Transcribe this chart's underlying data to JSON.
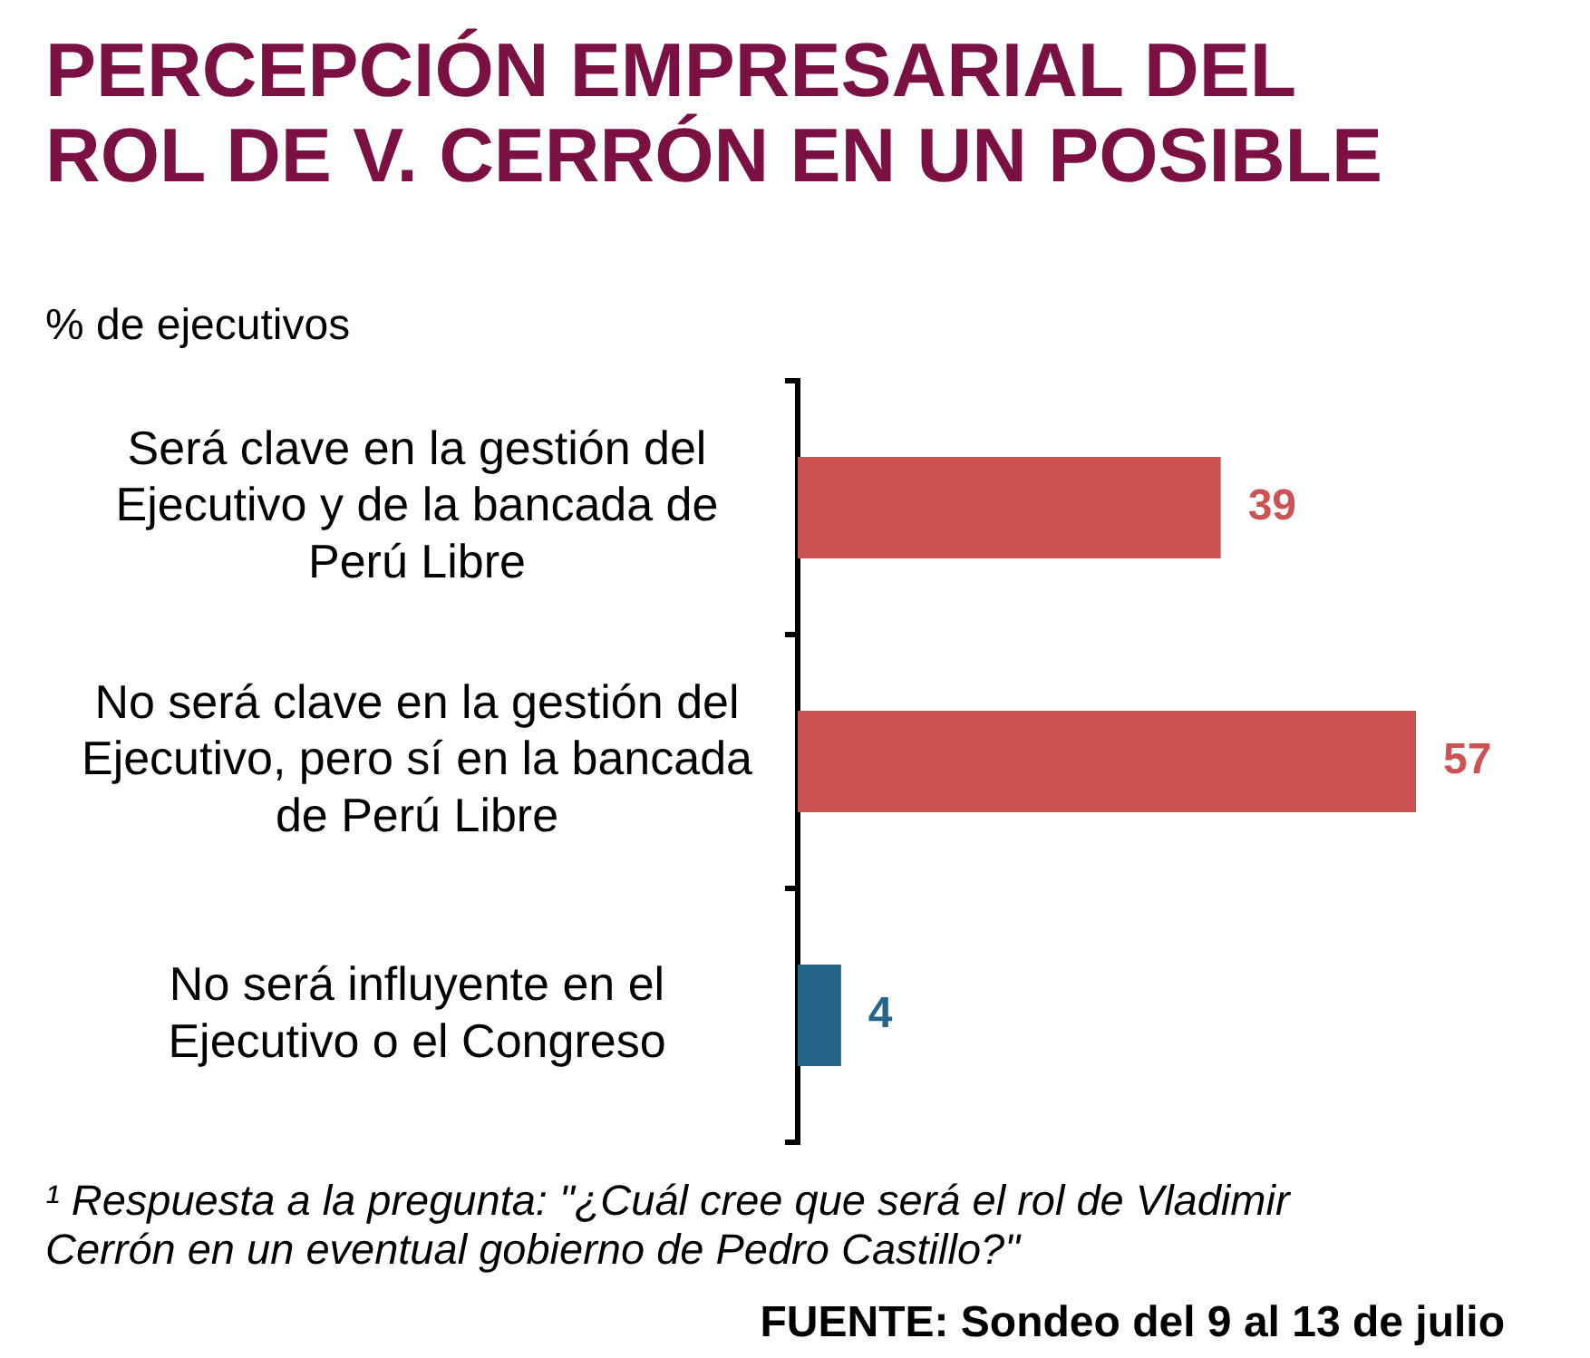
{
  "chart_data": {
    "type": "bar",
    "orientation": "horizontal",
    "title": "PERCEPCIÓN EMPRESARIAL DEL ROL DE V. CERRÓN EN UN POSIBLE",
    "subtitle": "% de ejecutivos",
    "categories": [
      "Será clave en la gestión del Ejecutivo y de la bancada de Perú Libre",
      "No será clave en la gestión del Ejecutivo, pero sí en la bancada de Perú Libre",
      "No será influyente en el Ejecutivo o el Congreso"
    ],
    "values": [
      39,
      57,
      4
    ],
    "colors": [
      "#cd5254",
      "#cd5254",
      "#23668a"
    ],
    "data_labels": true,
    "tick_labels": "y",
    "annotations": [
      "¹ Respuesta a la pregunta: \"¿Cuál cree que será el rol de Vladimir Cerrón en un eventual gobierno de Pedro Castillo?\"",
      "FUENTE: Sondeo del 9 al 13 de julio"
    ]
  }
}
